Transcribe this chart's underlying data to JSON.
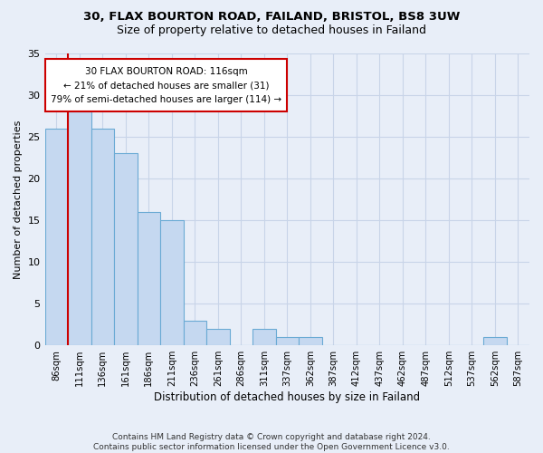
{
  "title1": "30, FLAX BOURTON ROAD, FAILAND, BRISTOL, BS8 3UW",
  "title2": "Size of property relative to detached houses in Failand",
  "xlabel": "Distribution of detached houses by size in Failand",
  "ylabel": "Number of detached properties",
  "bar_labels": [
    "86sqm",
    "111sqm",
    "136sqm",
    "161sqm",
    "186sqm",
    "211sqm",
    "236sqm",
    "261sqm",
    "286sqm",
    "311sqm",
    "337sqm",
    "362sqm",
    "387sqm",
    "412sqm",
    "437sqm",
    "462sqm",
    "487sqm",
    "512sqm",
    "537sqm",
    "562sqm",
    "587sqm"
  ],
  "bar_values": [
    26,
    28,
    26,
    23,
    16,
    15,
    3,
    2,
    0,
    2,
    1,
    1,
    0,
    0,
    0,
    0,
    0,
    0,
    0,
    1,
    0
  ],
  "bar_color": "#c5d8f0",
  "bar_edge_color": "#6aaad4",
  "ylim": [
    0,
    35
  ],
  "yticks": [
    0,
    5,
    10,
    15,
    20,
    25,
    30,
    35
  ],
  "vline_x": 0.5,
  "vline_color": "#cc0000",
  "annotation_box_text": "30 FLAX BOURTON ROAD: 116sqm\n← 21% of detached houses are smaller (31)\n79% of semi-detached houses are larger (114) →",
  "box_edge_color": "#cc0000",
  "footer_text": "Contains HM Land Registry data © Crown copyright and database right 2024.\nContains public sector information licensed under the Open Government Licence v3.0.",
  "background_color": "#e8eef8",
  "grid_color": "#c8d4e8"
}
